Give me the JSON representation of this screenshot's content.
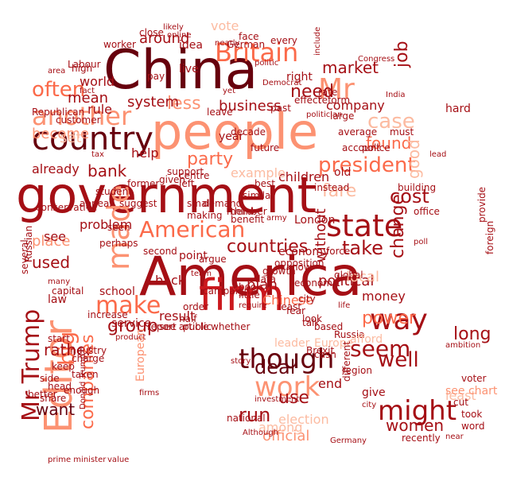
{
  "palette": {
    "darkest": "#67000d",
    "dark": "#a50f15",
    "red": "#cb181d",
    "mid": "#ef3b2c",
    "orange": "#fb6a4a",
    "salmon": "#fc9272",
    "light": "#fcbba1",
    "pale": "#fee0d2"
  },
  "words": [
    {
      "text": "China"
    },
    {
      "text": "people"
    },
    {
      "text": "government"
    },
    {
      "text": "America"
    },
    {
      "text": "firm"
    },
    {
      "text": "Britain"
    },
    {
      "text": "Mr"
    },
    {
      "text": "country"
    },
    {
      "text": "another"
    },
    {
      "text": "Editor"
    },
    {
      "text": "American"
    },
    {
      "text": "state"
    },
    {
      "text": "though"
    },
    {
      "text": "might"
    },
    {
      "text": "work"
    },
    {
      "text": "way"
    },
    {
      "text": "make"
    },
    {
      "text": "often"
    },
    {
      "text": "president"
    },
    {
      "text": "market"
    },
    {
      "text": "need"
    },
    {
      "text": "business"
    },
    {
      "text": "become"
    },
    {
      "text": "less"
    },
    {
      "text": "around"
    },
    {
      "text": "system"
    },
    {
      "text": "party"
    },
    {
      "text": "bank"
    },
    {
      "text": "made"
    },
    {
      "text": "countries"
    },
    {
      "text": "take"
    },
    {
      "text": "fare"
    },
    {
      "text": "change"
    },
    {
      "text": "case"
    },
    {
      "text": "found"
    },
    {
      "text": "group"
    },
    {
      "text": "cost"
    },
    {
      "text": "long"
    },
    {
      "text": "seem"
    },
    {
      "text": "well"
    },
    {
      "text": "deal"
    },
    {
      "text": "run"
    },
    {
      "text": "use"
    },
    {
      "text": "women"
    },
    {
      "text": "power"
    },
    {
      "text": "want"
    },
    {
      "text": "big"
    },
    {
      "text": "rather"
    },
    {
      "text": "used"
    },
    {
      "text": "Mr Trump"
    },
    {
      "text": "place"
    },
    {
      "text": "political"
    },
    {
      "text": "local"
    },
    {
      "text": "plan"
    },
    {
      "text": "Chinese"
    },
    {
      "text": "companies"
    },
    {
      "text": "world"
    },
    {
      "text": "mean"
    },
    {
      "text": "rule"
    },
    {
      "text": "help"
    },
    {
      "text": "already"
    },
    {
      "text": "company"
    },
    {
      "text": "children"
    },
    {
      "text": "service"
    },
    {
      "text": "result"
    },
    {
      "text": "end"
    },
    {
      "text": "official"
    },
    {
      "text": "least"
    },
    {
      "text": "job"
    },
    {
      "text": "good"
    },
    {
      "text": "without"
    },
    {
      "text": "Republican"
    },
    {
      "text": "economy"
    },
    {
      "text": "example"
    },
    {
      "text": "London"
    },
    {
      "text": "Europe"
    },
    {
      "text": "set"
    },
    {
      "text": "year"
    },
    {
      "text": "right"
    },
    {
      "text": "idea"
    },
    {
      "text": "vote"
    },
    {
      "text": "among"
    },
    {
      "text": "back"
    },
    {
      "text": "problem"
    },
    {
      "text": "see"
    },
    {
      "text": "point"
    },
    {
      "text": "school"
    },
    {
      "text": "money"
    },
    {
      "text": "leader"
    },
    {
      "text": "law"
    },
    {
      "text": "old"
    },
    {
      "text": "live"
    },
    {
      "text": "European"
    },
    {
      "text": "prime minister"
    },
    {
      "text": "value"
    },
    {
      "text": "Germany"
    },
    {
      "text": "Although"
    },
    {
      "text": "election"
    },
    {
      "text": "investment"
    },
    {
      "text": "share"
    },
    {
      "text": "head"
    },
    {
      "text": "taken"
    },
    {
      "text": "voter"
    },
    {
      "text": "recently"
    },
    {
      "text": "give"
    },
    {
      "text": "Russia"
    },
    {
      "text": "Brexit"
    },
    {
      "text": "growth"
    },
    {
      "text": "data"
    },
    {
      "text": "book"
    },
    {
      "text": "little"
    },
    {
      "text": "second"
    },
    {
      "text": "Donald Trump"
    },
    {
      "text": "support"
    },
    {
      "text": "small"
    },
    {
      "text": "making"
    },
    {
      "text": "student"
    },
    {
      "text": "report"
    },
    {
      "text": "order"
    },
    {
      "text": "half"
    },
    {
      "text": "public"
    },
    {
      "text": "whether"
    },
    {
      "text": "national"
    },
    {
      "text": "city"
    },
    {
      "text": "fear"
    },
    {
      "text": "talk"
    },
    {
      "text": "look"
    },
    {
      "text": "based"
    },
    {
      "text": "cash"
    },
    {
      "text": "effect"
    },
    {
      "text": "reform"
    },
    {
      "text": "Democrat"
    },
    {
      "text": "worker"
    },
    {
      "text": "pay"
    },
    {
      "text": "close"
    },
    {
      "text": "industry"
    },
    {
      "text": "capital"
    },
    {
      "text": "customer"
    },
    {
      "text": "high"
    },
    {
      "text": "decade"
    },
    {
      "text": "face"
    },
    {
      "text": "German"
    },
    {
      "text": "online"
    },
    {
      "text": "likely"
    },
    {
      "text": "every"
    },
    {
      "text": "include"
    },
    {
      "text": "India"
    },
    {
      "text": "Congress"
    },
    {
      "text": "average"
    },
    {
      "text": "politician"
    },
    {
      "text": "instead"
    },
    {
      "text": "police"
    },
    {
      "text": "building"
    },
    {
      "text": "must"
    },
    {
      "text": "office"
    },
    {
      "text": "foreign"
    },
    {
      "text": "provide"
    },
    {
      "text": "Russian"
    },
    {
      "text": "several"
    },
    {
      "text": "perhaps"
    },
    {
      "text": "conservative"
    },
    {
      "text": "centre"
    },
    {
      "text": "given"
    },
    {
      "text": "left"
    },
    {
      "text": "future"
    },
    {
      "text": "similar"
    },
    {
      "text": "benefit"
    },
    {
      "text": "argue"
    },
    {
      "text": "campaign"
    },
    {
      "text": "increase"
    },
    {
      "text": "charge"
    },
    {
      "text": "keep"
    },
    {
      "text": "side"
    },
    {
      "text": "enough"
    },
    {
      "text": "start"
    },
    {
      "text": "word"
    },
    {
      "text": "cut"
    },
    {
      "text": "took"
    },
    {
      "text": "hard"
    },
    {
      "text": "leave"
    },
    {
      "text": "third"
    },
    {
      "text": "force"
    },
    {
      "text": "region"
    },
    {
      "text": "global"
    },
    {
      "text": "different"
    },
    {
      "text": "member"
    },
    {
      "text": "appear"
    },
    {
      "text": "seen"
    },
    {
      "text": "suggest"
    },
    {
      "text": "least"
    },
    {
      "text": "see chart"
    },
    {
      "text": "see article"
    },
    {
      "text": "know"
    },
    {
      "text": "economic"
    },
    {
      "text": "Labour"
    },
    {
      "text": "better"
    },
    {
      "text": "afford"
    },
    {
      "text": "nearly"
    },
    {
      "text": "area"
    },
    {
      "text": "demand"
    },
    {
      "text": "former"
    },
    {
      "text": "past"
    },
    {
      "text": "account"
    },
    {
      "text": "large"
    },
    {
      "text": "rate"
    },
    {
      "text": "best"
    },
    {
      "text": "opposition"
    },
    {
      "text": "require"
    },
    {
      "text": "ambition"
    },
    {
      "text": "product"
    },
    {
      "text": "tax"
    },
    {
      "text": "yet"
    },
    {
      "text": "many"
    },
    {
      "text": "fact"
    },
    {
      "text": "politic"
    },
    {
      "text": "lead"
    },
    {
      "text": "life"
    },
    {
      "text": "near"
    },
    {
      "text": "city"
    },
    {
      "text": "story"
    },
    {
      "text": "team"
    },
    {
      "text": "army"
    },
    {
      "text": "firms"
    },
    {
      "text": "poll"
    },
    {
      "text": "deal"
    }
  ]
}
